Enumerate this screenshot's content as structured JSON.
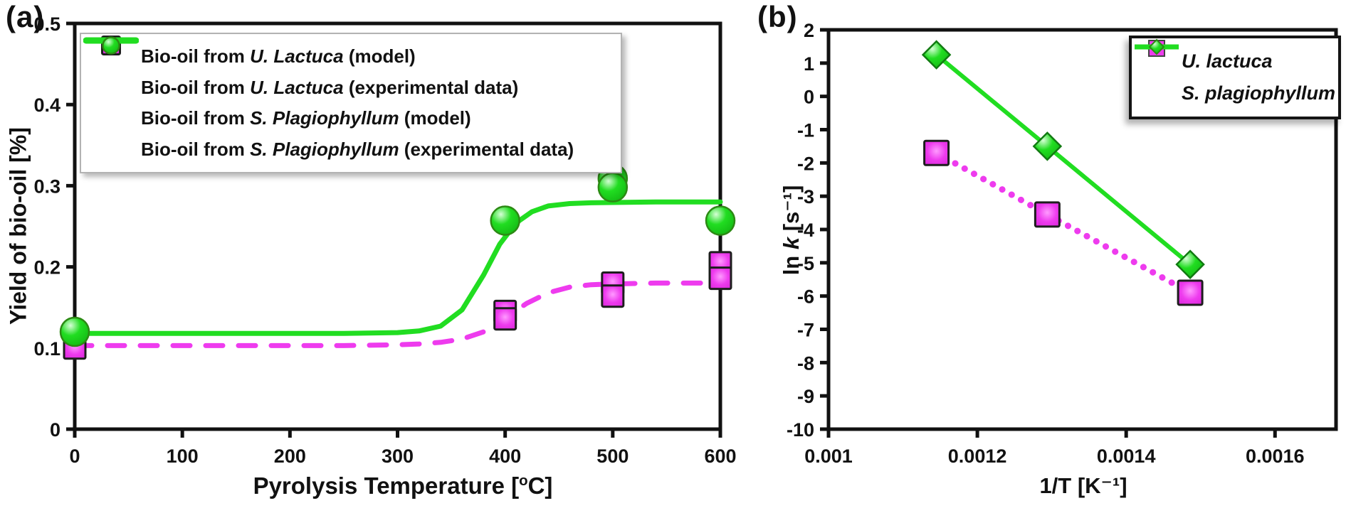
{
  "figure": {
    "background": "#ffffff"
  },
  "colors": {
    "magenta": "#ee3bee",
    "magenta_dark": "#d320d3",
    "magenta_light": "#ff9aff",
    "green": "#21dd21",
    "green_dark": "#12b412",
    "green_light": "#d6ffd6",
    "green_stroke": "#2c8a14",
    "marker_border": "#1d1d1d",
    "axis": "#111111"
  },
  "panel_a": {
    "label": "(a)",
    "y_axis_label": "Yield of bio-oil [%]",
    "x_axis_label": {
      "pre": "Pyrolysis Temperature [",
      "sup": "o",
      "post": "C]"
    },
    "legend": [
      {
        "swatch": "dashed-line",
        "pre": "Bio-oil from ",
        "species": "U. Lactuca",
        "post": " (model)"
      },
      {
        "swatch": "square",
        "pre": "Bio-oil from ",
        "species": "U. Lactuca",
        "post": " (experimental data)"
      },
      {
        "swatch": "solid-line",
        "pre": "Bio-oil from ",
        "species": "S. Plagiophyllum",
        "post": " (model)"
      },
      {
        "swatch": "circle",
        "pre": "Bio-oil from ",
        "species": "S. Plagiophyllum",
        "post": " (experimental data)"
      }
    ]
  },
  "panel_b": {
    "label": "(b)",
    "y_axis_label": {
      "pre": "ln ",
      "italic": "k",
      "post": " [s⁻¹]"
    },
    "x_axis_label": "1/T [K⁻¹]",
    "legend": [
      {
        "swatch": "square",
        "species": "U. lactuca"
      },
      {
        "swatch": "line-diamond",
        "species": "S. plagiophyllum"
      }
    ]
  },
  "chart_data": [
    {
      "type": "line",
      "title": "",
      "xlabel": "Pyrolysis Temperature [°C]",
      "ylabel": "Yield of bio-oil [%]",
      "xlim": [
        0,
        600
      ],
      "ylim": [
        0,
        0.5
      ],
      "x_ticks": [
        0,
        100,
        200,
        300,
        400,
        500,
        600
      ],
      "x_tick_labels": [
        "0",
        "100",
        "200",
        "300",
        "400",
        "500",
        "600"
      ],
      "y_ticks": [
        0,
        0.1,
        0.2,
        0.3,
        0.4,
        0.5
      ],
      "y_tick_labels": [
        "0",
        "0.1",
        "0.2",
        "0.3",
        "0.4",
        "0.5"
      ],
      "grid": false,
      "legend_position": "upper-left",
      "series": [
        {
          "name": "Bio-oil from U. Lactuca (model)",
          "line": "dashed",
          "marker": "none",
          "color": "#ee3bee",
          "width": 7,
          "points": [
            [
              0,
              0.103
            ],
            [
              150,
              0.103
            ],
            [
              250,
              0.103
            ],
            [
              300,
              0.104
            ],
            [
              320,
              0.105
            ],
            [
              340,
              0.107
            ],
            [
              360,
              0.111
            ],
            [
              380,
              0.12
            ],
            [
              400,
              0.137
            ],
            [
              420,
              0.155
            ],
            [
              440,
              0.168
            ],
            [
              460,
              0.175
            ],
            [
              480,
              0.178
            ],
            [
              500,
              0.179
            ],
            [
              540,
              0.18
            ],
            [
              600,
              0.18
            ]
          ]
        },
        {
          "name": "Bio-oil from S. Plagiophyllum (model)",
          "line": "solid",
          "marker": "none",
          "color": "#21dd21",
          "width": 7,
          "points": [
            [
              0,
              0.118
            ],
            [
              150,
              0.118
            ],
            [
              250,
              0.118
            ],
            [
              300,
              0.119
            ],
            [
              320,
              0.121
            ],
            [
              340,
              0.127
            ],
            [
              360,
              0.147
            ],
            [
              380,
              0.19
            ],
            [
              395,
              0.228
            ],
            [
              410,
              0.254
            ],
            [
              425,
              0.268
            ],
            [
              440,
              0.275
            ],
            [
              460,
              0.278
            ],
            [
              480,
              0.279
            ],
            [
              540,
              0.28
            ],
            [
              600,
              0.28
            ]
          ]
        },
        {
          "name": "Bio-oil from U. Lactuca (experimental data)",
          "line": "none",
          "marker": "square",
          "size": 30,
          "color": "#ee3bee",
          "points": [
            [
              0,
              0.1
            ],
            [
              400,
              0.145
            ],
            [
              400,
              0.136
            ],
            [
              500,
              0.18
            ],
            [
              500,
              0.164
            ],
            [
              600,
              0.205
            ],
            [
              600,
              0.186
            ]
          ]
        },
        {
          "name": "Bio-oil from S. Plagiophyllum (experimental data)",
          "line": "none",
          "marker": "circle",
          "size": 40,
          "color": "#21dd21",
          "points": [
            [
              0,
              0.12
            ],
            [
              400,
              0.257
            ],
            [
              500,
              0.309
            ],
            [
              500,
              0.298
            ],
            [
              600,
              0.257
            ]
          ]
        }
      ]
    },
    {
      "type": "scatter",
      "title": "",
      "xlabel": "1/T [K⁻¹]",
      "ylabel": "ln k [s⁻¹]",
      "xlim": [
        0.001,
        0.001682
      ],
      "ylim": [
        -10,
        2
      ],
      "x_ticks": [
        0.001,
        0.0012,
        0.0014,
        0.0016
      ],
      "x_tick_labels": [
        "0.001",
        "0.0012",
        "0.0014",
        "0.0016"
      ],
      "y_ticks": [
        2,
        1,
        0,
        -1,
        -2,
        -3,
        -4,
        -5,
        -6,
        -7,
        -8,
        -9,
        -10
      ],
      "y_tick_labels": [
        "2",
        "1",
        "0",
        "-1",
        "-2",
        "-3",
        "-4",
        "-5",
        "-6",
        "-7",
        "-8",
        "-9",
        "-10"
      ],
      "grid": false,
      "legend_position": "upper-right",
      "series": [
        {
          "name": "U. lactuca",
          "line": "dotted",
          "marker": "square",
          "size": 34,
          "color": "#ee3bee",
          "width": 9,
          "points": [
            [
              0.001145,
              -1.7
            ],
            [
              0.001294,
              -3.55
            ],
            [
              0.001486,
              -5.9
            ]
          ]
        },
        {
          "name": "S. plagiophyllum",
          "line": "solid",
          "marker": "diamond",
          "size": 38,
          "color": "#21dd21",
          "width": 6,
          "points": [
            [
              0.001145,
              1.25
            ],
            [
              0.001294,
              -1.5
            ],
            [
              0.001486,
              -5.05
            ]
          ]
        }
      ]
    }
  ]
}
